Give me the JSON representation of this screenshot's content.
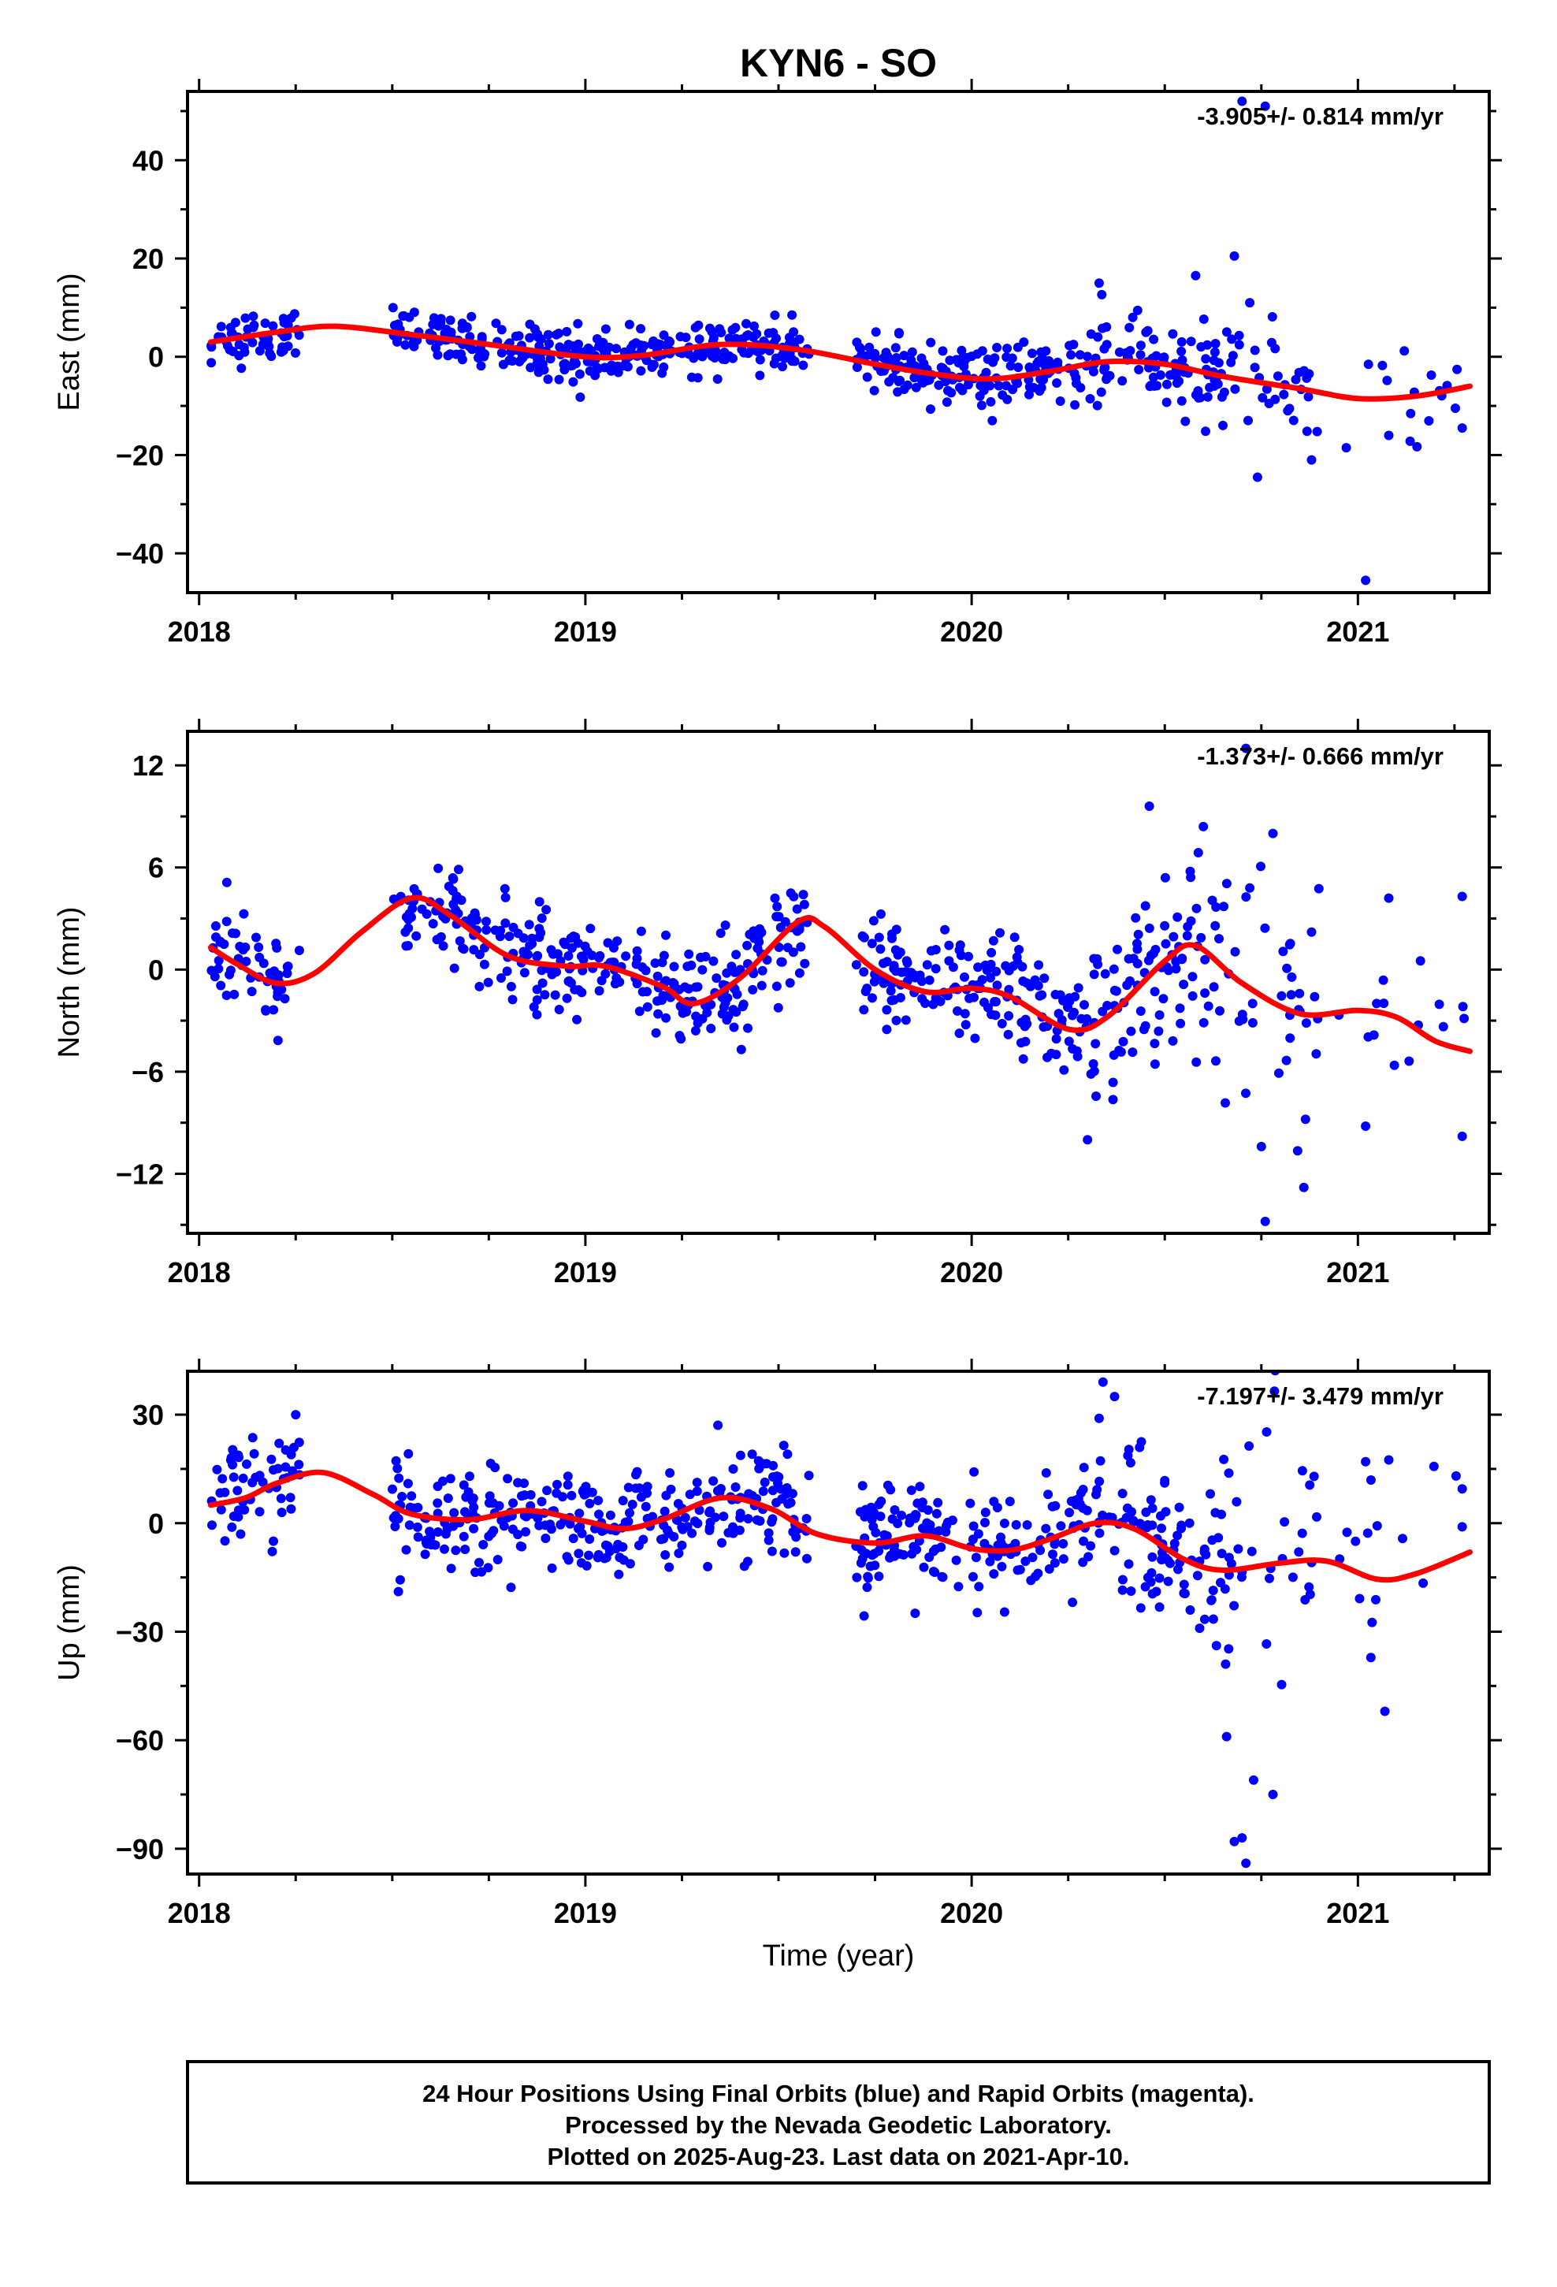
{
  "figure": {
    "title": "KYN6 - SO",
    "xlabel": "Time (year)",
    "footer": [
      "24 Hour Positions Using Final Orbits (blue) and Rapid Orbits (magenta).",
      "Processed by the Nevada Geodetic Laboratory.",
      "Plotted on 2025-Aug-23. Last data on 2021-Apr-10."
    ],
    "colors": {
      "final_orbits": "#0000ff",
      "fit": "#ff0000",
      "frame": "#000000"
    }
  },
  "chart_data": [
    {
      "type": "scatter",
      "ylabel": "East (mm)",
      "rate": "-3.905+/- 0.814 mm/yr",
      "xlim": [
        2017.97,
        2021.34
      ],
      "ylim": [
        -48,
        54
      ],
      "xticks": [
        2018,
        2019,
        2020,
        2021
      ],
      "xtick_labels": [
        "2018",
        "2019",
        "2020",
        "2021"
      ],
      "yticks": [
        -40,
        -20,
        0,
        20,
        40
      ],
      "ytick_labels": [
        "−40",
        "−20",
        "0",
        "20",
        "40"
      ],
      "fit": [
        [
          2018.03,
          3.0
        ],
        [
          2018.2,
          5.0
        ],
        [
          2018.35,
          6.2
        ],
        [
          2018.55,
          4.5
        ],
        [
          2018.75,
          2.5
        ],
        [
          2019.0,
          0.0
        ],
        [
          2019.15,
          0.3
        ],
        [
          2019.35,
          2.5
        ],
        [
          2019.55,
          1.5
        ],
        [
          2019.75,
          -1.5
        ],
        [
          2019.9,
          -3.5
        ],
        [
          2020.05,
          -4.5
        ],
        [
          2020.2,
          -3.0
        ],
        [
          2020.35,
          -1.0
        ],
        [
          2020.5,
          -1.5
        ],
        [
          2020.65,
          -4.0
        ],
        [
          2020.85,
          -6.5
        ],
        [
          2021.0,
          -8.5
        ],
        [
          2021.15,
          -8.0
        ],
        [
          2021.29,
          -6.0
        ]
      ],
      "series": [
        {
          "segments": [
            {
              "x0": 2018.03,
              "x1": 2018.26,
              "n": 55,
              "sd": 2.6
            },
            {
              "x0": 2018.5,
              "x1": 2018.98,
              "n": 130,
              "sd": 2.4
            },
            {
              "x0": 2018.98,
              "x1": 2019.58,
              "n": 170,
              "sd": 2.4
            },
            {
              "x0": 2019.7,
              "x1": 2020.3,
              "n": 170,
              "sd": 3.0
            },
            {
              "x0": 2020.3,
              "x1": 2020.65,
              "n": 95,
              "sd": 4.5
            },
            {
              "x0": 2020.65,
              "x1": 2020.9,
              "n": 35,
              "sd": 5.5
            },
            {
              "x0": 2020.95,
              "x1": 2021.29,
              "n": 14,
              "sd": 5.0
            }
          ],
          "extra": [
            [
              2020.7,
              52
            ],
            [
              2020.76,
              51
            ],
            [
              2020.68,
              20.5
            ],
            [
              2020.58,
              16.5
            ],
            [
              2020.33,
              15
            ],
            [
              2020.72,
              11
            ],
            [
              2020.0,
              0.1
            ],
            [
              2020.74,
              -24.5
            ],
            [
              2020.88,
              -21
            ],
            [
              2021.02,
              -45.5
            ],
            [
              2020.97,
              -18.5
            ],
            [
              2021.08,
              -16
            ],
            [
              2021.12,
              1.2
            ],
            [
              2021.27,
              -14.5
            ]
          ]
        }
      ]
    },
    {
      "type": "scatter",
      "ylabel": "North (mm)",
      "rate": "-1.373+/- 0.666 mm/yr",
      "xlim": [
        2017.97,
        2021.34
      ],
      "ylim": [
        -15.5,
        14
      ],
      "xticks": [
        2018,
        2019,
        2020,
        2021
      ],
      "xtick_labels": [
        "2018",
        "2019",
        "2020",
        "2021"
      ],
      "yticks": [
        -12,
        -6,
        0,
        6,
        12
      ],
      "ytick_labels": [
        "−12",
        "−6",
        "0",
        "6",
        "12"
      ],
      "fit": [
        [
          2018.03,
          1.3
        ],
        [
          2018.1,
          0.3
        ],
        [
          2018.2,
          -0.8
        ],
        [
          2018.3,
          -0.2
        ],
        [
          2018.42,
          2.2
        ],
        [
          2018.55,
          4.2
        ],
        [
          2018.65,
          3.2
        ],
        [
          2018.8,
          0.8
        ],
        [
          2018.95,
          0.2
        ],
        [
          2019.05,
          0.2
        ],
        [
          2019.2,
          -1.0
        ],
        [
          2019.28,
          -2.0
        ],
        [
          2019.4,
          -0.5
        ],
        [
          2019.55,
          2.8
        ],
        [
          2019.62,
          2.5
        ],
        [
          2019.75,
          0.0
        ],
        [
          2019.88,
          -1.3
        ],
        [
          2020.0,
          -1.1
        ],
        [
          2020.1,
          -1.6
        ],
        [
          2020.25,
          -3.5
        ],
        [
          2020.35,
          -2.8
        ],
        [
          2020.5,
          0.5
        ],
        [
          2020.58,
          1.4
        ],
        [
          2020.7,
          -0.8
        ],
        [
          2020.85,
          -2.6
        ],
        [
          2021.0,
          -2.4
        ],
        [
          2021.1,
          -2.8
        ],
        [
          2021.2,
          -4.2
        ],
        [
          2021.29,
          -4.8
        ]
      ],
      "series": [
        {
          "segments": [
            {
              "x0": 2018.03,
              "x1": 2018.26,
              "n": 55,
              "sd": 1.4
            },
            {
              "x0": 2018.5,
              "x1": 2018.98,
              "n": 130,
              "sd": 1.5
            },
            {
              "x0": 2018.98,
              "x1": 2019.58,
              "n": 170,
              "sd": 1.5
            },
            {
              "x0": 2019.7,
              "x1": 2020.3,
              "n": 170,
              "sd": 1.6
            },
            {
              "x0": 2020.3,
              "x1": 2020.65,
              "n": 95,
              "sd": 2.6
            },
            {
              "x0": 2020.65,
              "x1": 2020.9,
              "n": 35,
              "sd": 3.4
            },
            {
              "x0": 2020.95,
              "x1": 2021.29,
              "n": 14,
              "sd": 2.8
            }
          ],
          "extra": [
            [
              2020.71,
              13
            ],
            [
              2020.46,
              9.6
            ],
            [
              2020.6,
              8.4
            ],
            [
              2020.78,
              8.0
            ],
            [
              2020.76,
              -14.8
            ],
            [
              2020.86,
              -12.8
            ],
            [
              2020.75,
              -10.4
            ],
            [
              2020.3,
              -10
            ],
            [
              2021.02,
              -9.2
            ],
            [
              2021.27,
              -9.8
            ],
            [
              2021.27,
              4.3
            ],
            [
              2020.88,
              2.2
            ],
            [
              2021.08,
              4.2
            ],
            [
              2020.72,
              4.8
            ]
          ]
        }
      ]
    },
    {
      "type": "scatter",
      "ylabel": "Up (mm)",
      "rate": "-7.197+/- 3.479 mm/yr",
      "xlim": [
        2017.97,
        2021.34
      ],
      "ylim": [
        -97,
        42
      ],
      "xticks": [
        2018,
        2019,
        2020,
        2021
      ],
      "xtick_labels": [
        "2018",
        "2019",
        "2020",
        "2021"
      ],
      "yticks": [
        -90,
        -60,
        -30,
        0,
        30
      ],
      "ytick_labels": [
        "−90",
        "−60",
        "−30",
        "0",
        "30"
      ],
      "fit": [
        [
          2018.03,
          5.0
        ],
        [
          2018.12,
          7.0
        ],
        [
          2018.2,
          11.0
        ],
        [
          2018.32,
          14.0
        ],
        [
          2018.45,
          8.0
        ],
        [
          2018.55,
          2.5
        ],
        [
          2018.7,
          1.0
        ],
        [
          2018.85,
          3.5
        ],
        [
          2019.0,
          0.5
        ],
        [
          2019.1,
          -1.5
        ],
        [
          2019.2,
          1.0
        ],
        [
          2019.35,
          7.0
        ],
        [
          2019.48,
          4.0
        ],
        [
          2019.6,
          -3.0
        ],
        [
          2019.75,
          -5.5
        ],
        [
          2019.88,
          -3.5
        ],
        [
          2020.0,
          -7.0
        ],
        [
          2020.1,
          -7.5
        ],
        [
          2020.2,
          -4.5
        ],
        [
          2020.32,
          0.0
        ],
        [
          2020.42,
          -1.5
        ],
        [
          2020.55,
          -10.0
        ],
        [
          2020.65,
          -13.0
        ],
        [
          2020.8,
          -11.0
        ],
        [
          2020.92,
          -10.5
        ],
        [
          2021.05,
          -15.5
        ],
        [
          2021.15,
          -14.0
        ],
        [
          2021.29,
          -8.0
        ]
      ],
      "series": [
        {
          "segments": [
            {
              "x0": 2018.03,
              "x1": 2018.26,
              "n": 55,
              "sd": 7.0
            },
            {
              "x0": 2018.5,
              "x1": 2018.98,
              "n": 130,
              "sd": 7.0
            },
            {
              "x0": 2018.98,
              "x1": 2019.58,
              "n": 170,
              "sd": 7.5
            },
            {
              "x0": 2019.7,
              "x1": 2020.3,
              "n": 170,
              "sd": 8.5
            },
            {
              "x0": 2020.3,
              "x1": 2020.65,
              "n": 95,
              "sd": 12.0
            },
            {
              "x0": 2020.65,
              "x1": 2020.9,
              "n": 35,
              "sd": 22.0
            },
            {
              "x0": 2020.95,
              "x1": 2021.29,
              "n": 14,
              "sd": 15.0
            }
          ],
          "extra": [
            [
              2020.34,
              39
            ],
            [
              2020.37,
              35
            ],
            [
              2020.33,
              29
            ],
            [
              2018.25,
              30
            ],
            [
              2020.7,
              -87
            ],
            [
              2020.71,
              -94
            ],
            [
              2020.73,
              -71
            ],
            [
              2020.78,
              -75
            ],
            [
              2020.68,
              -88
            ],
            [
              2020.66,
              -59
            ],
            [
              2021.07,
              -52
            ],
            [
              2021.27,
              9.5
            ],
            [
              2021.27,
              -1
            ],
            [
              2021.02,
              17
            ],
            [
              2021.08,
              17.5
            ]
          ]
        }
      ]
    }
  ]
}
